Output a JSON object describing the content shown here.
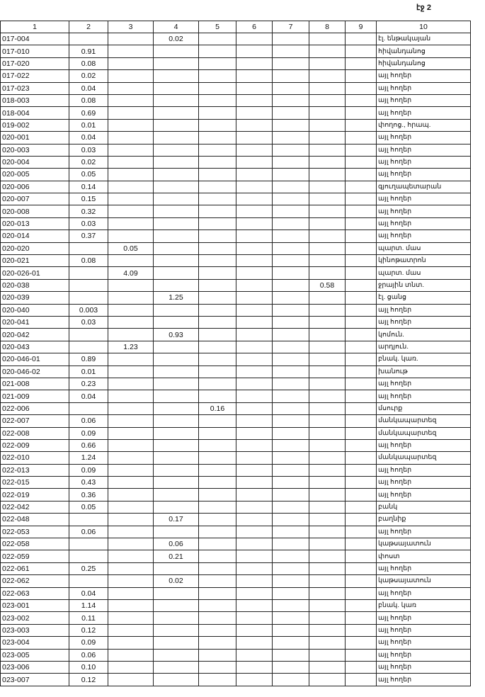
{
  "page_label": "էջ 2",
  "columns": [
    "1",
    "2",
    "3",
    "4",
    "5",
    "6",
    "7",
    "8",
    "9",
    "10"
  ],
  "rows": [
    {
      "id": "017-004",
      "c2": "",
      "c3": "",
      "c4": "0.02",
      "c5": "",
      "c8": "",
      "desc": "էլ. ենթակայան"
    },
    {
      "id": "017-010",
      "c2": "0.91",
      "c3": "",
      "c4": "",
      "c5": "",
      "c8": "",
      "desc": "հիվանդանոց"
    },
    {
      "id": "017-020",
      "c2": "0.08",
      "c3": "",
      "c4": "",
      "c5": "",
      "c8": "",
      "desc": "հիվանդանոց"
    },
    {
      "id": "017-022",
      "c2": "0.02",
      "c3": "",
      "c4": "",
      "c5": "",
      "c8": "",
      "desc": "այլ հողեր"
    },
    {
      "id": "017-023",
      "c2": "0.04",
      "c3": "",
      "c4": "",
      "c5": "",
      "c8": "",
      "desc": "այլ հողեր"
    },
    {
      "id": "018-003",
      "c2": "0.08",
      "c3": "",
      "c4": "",
      "c5": "",
      "c8": "",
      "desc": "այլ հողեր"
    },
    {
      "id": "018-004",
      "c2": "0.69",
      "c3": "",
      "c4": "",
      "c5": "",
      "c8": "",
      "desc": "այլ հողեր"
    },
    {
      "id": "019-002",
      "c2": "0.01",
      "c3": "",
      "c4": "",
      "c5": "",
      "c8": "",
      "desc": "փողոց., հրապ."
    },
    {
      "id": "020-001",
      "c2": "0.04",
      "c3": "",
      "c4": "",
      "c5": "",
      "c8": "",
      "desc": "այլ հողեր"
    },
    {
      "id": "020-003",
      "c2": "0.03",
      "c3": "",
      "c4": "",
      "c5": "",
      "c8": "",
      "desc": "այլ հողեր"
    },
    {
      "id": "020-004",
      "c2": "0.02",
      "c3": "",
      "c4": "",
      "c5": "",
      "c8": "",
      "desc": "այլ հողեր"
    },
    {
      "id": "020-005",
      "c2": "0.05",
      "c3": "",
      "c4": "",
      "c5": "",
      "c8": "",
      "desc": "այլ հողեր"
    },
    {
      "id": "020-006",
      "c2": "0.14",
      "c3": "",
      "c4": "",
      "c5": "",
      "c8": "",
      "desc": "գյուղապետարան"
    },
    {
      "id": "020-007",
      "c2": "0.15",
      "c3": "",
      "c4": "",
      "c5": "",
      "c8": "",
      "desc": "այլ հողեր"
    },
    {
      "id": "020-008",
      "c2": "0.32",
      "c3": "",
      "c4": "",
      "c5": "",
      "c8": "",
      "desc": "այլ հողեր"
    },
    {
      "id": "020-013",
      "c2": "0.03",
      "c3": "",
      "c4": "",
      "c5": "",
      "c8": "",
      "desc": "այլ հողեր"
    },
    {
      "id": "020-014",
      "c2": "0.37",
      "c3": "",
      "c4": "",
      "c5": "",
      "c8": "",
      "desc": "այլ հողեր"
    },
    {
      "id": "020-020",
      "c2": "",
      "c3": "0.05",
      "c4": "",
      "c5": "",
      "c8": "",
      "desc": "պարտ. մաս"
    },
    {
      "id": "020-021",
      "c2": "0.08",
      "c3": "",
      "c4": "",
      "c5": "",
      "c8": "",
      "desc": "կինոթատրոն"
    },
    {
      "id": "020-026-01",
      "c2": "",
      "c3": "4.09",
      "c4": "",
      "c5": "",
      "c8": "",
      "desc": "պարտ. մաս"
    },
    {
      "id": "020-038",
      "c2": "",
      "c3": "",
      "c4": "",
      "c5": "",
      "c8": "0.58",
      "desc": "ջրային տնտ."
    },
    {
      "id": "020-039",
      "c2": "",
      "c3": "",
      "c4": "1.25",
      "c5": "",
      "c8": "",
      "desc": "էլ. ցանց"
    },
    {
      "id": "020-040",
      "c2": "0.003",
      "c3": "",
      "c4": "",
      "c5": "",
      "c8": "",
      "desc": "այլ հողեր"
    },
    {
      "id": "020-041",
      "c2": "0.03",
      "c3": "",
      "c4": "",
      "c5": "",
      "c8": "",
      "desc": "այլ հողեր"
    },
    {
      "id": "020-042",
      "c2": "",
      "c3": "",
      "c4": "0.93",
      "c5": "",
      "c8": "",
      "desc": "կոմուն."
    },
    {
      "id": "020-043",
      "c2": "",
      "c3": "1.23",
      "c4": "",
      "c5": "",
      "c8": "",
      "desc": "արդյուն."
    },
    {
      "id": "020-046-01",
      "c2": "0.89",
      "c3": "",
      "c4": "",
      "c5": "",
      "c8": "",
      "desc": "բնակ. կառ."
    },
    {
      "id": "020-046-02",
      "c2": "0.01",
      "c3": "",
      "c4": "",
      "c5": "",
      "c8": "",
      "desc": "խանութ"
    },
    {
      "id": "021-008",
      "c2": "0.23",
      "c3": "",
      "c4": "",
      "c5": "",
      "c8": "",
      "desc": "այլ հողեր"
    },
    {
      "id": "021-009",
      "c2": "0.04",
      "c3": "",
      "c4": "",
      "c5": "",
      "c8": "",
      "desc": "այլ հողեր"
    },
    {
      "id": "022-006",
      "c2": "",
      "c3": "",
      "c4": "",
      "c5": "0.16",
      "c8": "",
      "desc": "մսուրք"
    },
    {
      "id": "022-007",
      "c2": "0.06",
      "c3": "",
      "c4": "",
      "c5": "",
      "c8": "",
      "desc": "մանկապարտեզ"
    },
    {
      "id": "022-008",
      "c2": "0.09",
      "c3": "",
      "c4": "",
      "c5": "",
      "c8": "",
      "desc": "մանկապարտեզ"
    },
    {
      "id": "022-009",
      "c2": "0.66",
      "c3": "",
      "c4": "",
      "c5": "",
      "c8": "",
      "desc": "այլ հողեր"
    },
    {
      "id": "022-010",
      "c2": "1.24",
      "c3": "",
      "c4": "",
      "c5": "",
      "c8": "",
      "desc": "մանկապարտեզ"
    },
    {
      "id": "022-013",
      "c2": "0.09",
      "c3": "",
      "c4": "",
      "c5": "",
      "c8": "",
      "desc": "այլ հողեր"
    },
    {
      "id": "022-015",
      "c2": "0.43",
      "c3": "",
      "c4": "",
      "c5": "",
      "c8": "",
      "desc": "այլ հողեր"
    },
    {
      "id": "022-019",
      "c2": "0.36",
      "c3": "",
      "c4": "",
      "c5": "",
      "c8": "",
      "desc": "այլ հողեր"
    },
    {
      "id": "022-042",
      "c2": "0.05",
      "c3": "",
      "c4": "",
      "c5": "",
      "c8": "",
      "desc": "բանկ"
    },
    {
      "id": "022-048",
      "c2": "",
      "c3": "",
      "c4": "0.17",
      "c5": "",
      "c8": "",
      "desc": "բաղնիք"
    },
    {
      "id": "022-053",
      "c2": "0.06",
      "c3": "",
      "c4": "",
      "c5": "",
      "c8": "",
      "desc": "այլ հողեր"
    },
    {
      "id": "022-058",
      "c2": "",
      "c3": "",
      "c4": "0.06",
      "c5": "",
      "c8": "",
      "desc": "կաթսայատուն"
    },
    {
      "id": "022-059",
      "c2": "",
      "c3": "",
      "c4": "0.21",
      "c5": "",
      "c8": "",
      "desc": "փոստ"
    },
    {
      "id": "022-061",
      "c2": "0.25",
      "c3": "",
      "c4": "",
      "c5": "",
      "c8": "",
      "desc": "այլ հողեր"
    },
    {
      "id": "022-062",
      "c2": "",
      "c3": "",
      "c4": "0.02",
      "c5": "",
      "c8": "",
      "desc": "կաթսայատուն"
    },
    {
      "id": "022-063",
      "c2": "0.04",
      "c3": "",
      "c4": "",
      "c5": "",
      "c8": "",
      "desc": "այլ հողեր"
    },
    {
      "id": "023-001",
      "c2": "1.14",
      "c3": "",
      "c4": "",
      "c5": "",
      "c8": "",
      "desc": "բնակ. կառ"
    },
    {
      "id": "023-002",
      "c2": "0.11",
      "c3": "",
      "c4": "",
      "c5": "",
      "c8": "",
      "desc": "այլ հողեր"
    },
    {
      "id": "023-003",
      "c2": "0.12",
      "c3": "",
      "c4": "",
      "c5": "",
      "c8": "",
      "desc": "այլ հողեր"
    },
    {
      "id": "023-004",
      "c2": "0.09",
      "c3": "",
      "c4": "",
      "c5": "",
      "c8": "",
      "desc": "այլ հողեր"
    },
    {
      "id": "023-005",
      "c2": "0.06",
      "c3": "",
      "c4": "",
      "c5": "",
      "c8": "",
      "desc": "այլ հողեր"
    },
    {
      "id": "023-006",
      "c2": "0.10",
      "c3": "",
      "c4": "",
      "c5": "",
      "c8": "",
      "desc": "այլ հողեր"
    },
    {
      "id": "023-007",
      "c2": "0.12",
      "c3": "",
      "c4": "",
      "c5": "",
      "c8": "",
      "desc": "այլ հողեր"
    }
  ]
}
